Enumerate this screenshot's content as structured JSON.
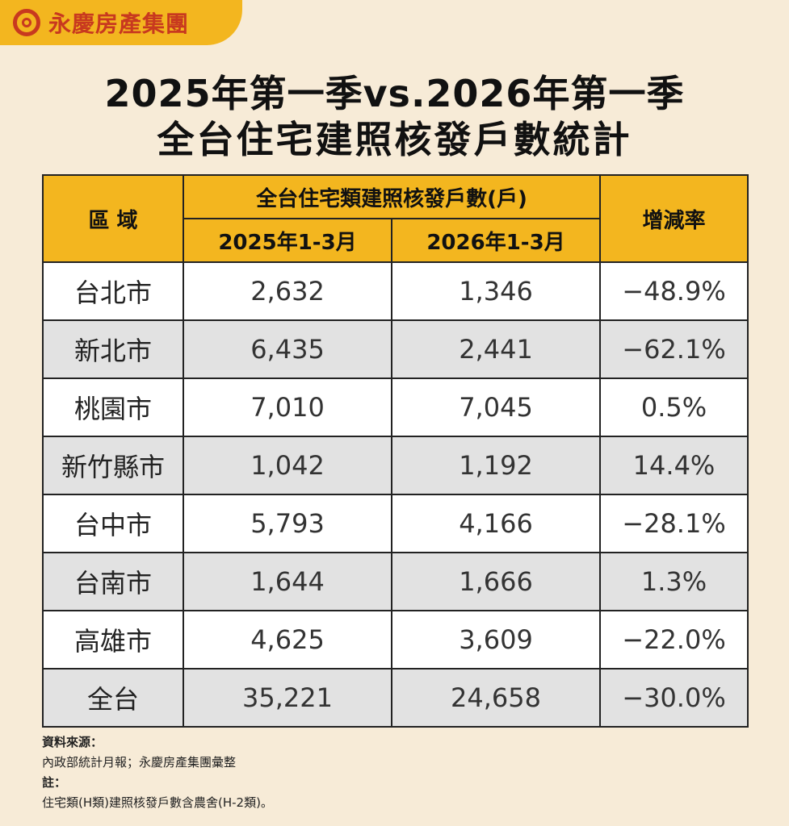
{
  "brand": {
    "name": "永慶房產集團",
    "logo_icon": "circle-logo-icon",
    "color": "#c8391f",
    "accent": "#f3b61f"
  },
  "title": {
    "line1": "2025年第一季vs.2026年第一季",
    "line2": "全台住宅建照核發戶數統計"
  },
  "table": {
    "header_region": "區 域",
    "header_group": "全台住宅類建照核發戶數(戶)",
    "header_2025": "2025年1-3月",
    "header_2026": "2026年1-3月",
    "header_rate": "增減率",
    "rows": [
      {
        "region": "台北市",
        "y2025": "2,632",
        "y2026": "1,346",
        "rate": "−48.9%"
      },
      {
        "region": "新北市",
        "y2025": "6,435",
        "y2026": "2,441",
        "rate": "−62.1%"
      },
      {
        "region": "桃園市",
        "y2025": "7,010",
        "y2026": "7,045",
        "rate": "0.5%"
      },
      {
        "region": "新竹縣市",
        "y2025": "1,042",
        "y2026": "1,192",
        "rate": "14.4%"
      },
      {
        "region": "台中市",
        "y2025": "5,793",
        "y2026": "4,166",
        "rate": "−28.1%"
      },
      {
        "region": "台南市",
        "y2025": "1,644",
        "y2026": "1,666",
        "rate": "1.3%"
      },
      {
        "region": "高雄市",
        "y2025": "4,625",
        "y2026": "3,609",
        "rate": "−22.0%"
      },
      {
        "region": "全台",
        "y2025": "35,221",
        "y2026": "24,658",
        "rate": "−30.0%"
      }
    ]
  },
  "notes": {
    "source_label": "資料來源：",
    "source_text": "內政部統計月報；永慶房產集團彙整",
    "note_label": "註：",
    "note_text": "住宅類(H類)建照核發戶數含農舍(H-2類)。"
  }
}
